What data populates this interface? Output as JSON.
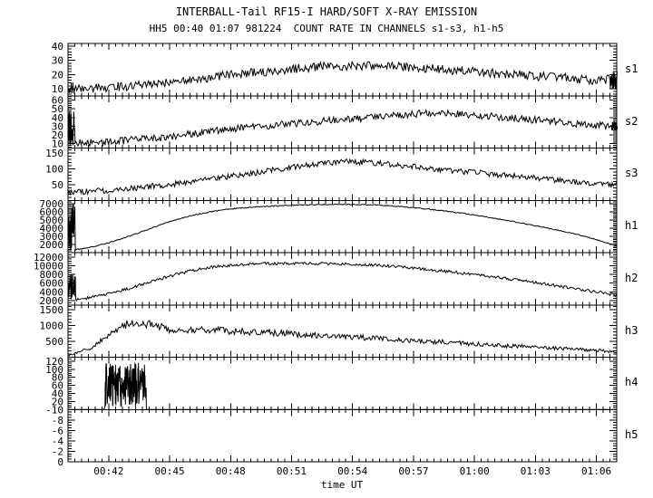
{
  "chart_data": {
    "type": "line",
    "title": "INTERBALL-Tail RF15-I HARD/SOFT X-RAY EMISSION",
    "subtitle": "HH5 00:40 01:07 981224  COUNT RATE IN CHANNELS s1-s3, h1-h5",
    "xlabel": "time UT",
    "date": "981224",
    "time_start": "00:40",
    "time_end": "01:07",
    "x_range_minutes": [
      0,
      27
    ],
    "x_minor_step": 0.33333,
    "x_ticks": [
      {
        "t": 2,
        "label": "00:42"
      },
      {
        "t": 5,
        "label": "00:45"
      },
      {
        "t": 8,
        "label": "00:48"
      },
      {
        "t": 11,
        "label": "00:51"
      },
      {
        "t": 14,
        "label": "00:54"
      },
      {
        "t": 17,
        "label": "00:57"
      },
      {
        "t": 20,
        "label": "01:00"
      },
      {
        "t": 23,
        "label": "01:03"
      },
      {
        "t": 26,
        "label": "01:06"
      }
    ],
    "panels": [
      {
        "name": "s1",
        "ylim": [
          5,
          42
        ],
        "yticks": [
          10,
          20,
          30,
          40
        ],
        "y_minor_step": 2,
        "noise_amp": 3.2,
        "noise_rel": 0,
        "values": [
          10,
          10,
          11,
          12,
          13,
          14,
          16,
          18,
          20,
          21,
          22,
          24,
          25,
          26,
          26,
          26,
          26,
          25,
          24,
          23,
          22,
          21,
          20,
          19,
          18,
          17,
          16,
          17
        ],
        "bursts": [
          {
            "t0": 0,
            "t1": 0.3,
            "lo": 6,
            "hi": 15
          },
          {
            "t0": 26.65,
            "t1": 27,
            "lo": 8,
            "hi": 22
          }
        ]
      },
      {
        "name": "s2",
        "ylim": [
          5,
          65
        ],
        "yticks": [
          10,
          20,
          30,
          40,
          50,
          60
        ],
        "y_minor_step": 2,
        "noise_amp": 4.2,
        "noise_rel": 0,
        "values": [
          10,
          11,
          12,
          14,
          16,
          18,
          21,
          24,
          27,
          29,
          31,
          33,
          35,
          37,
          38,
          40,
          42,
          44,
          45,
          45,
          43,
          41,
          39,
          37,
          35,
          33,
          31,
          30
        ],
        "bursts": [
          {
            "t0": 0,
            "t1": 0.35,
            "lo": 8,
            "hi": 50
          },
          {
            "t0": 26.7,
            "t1": 27,
            "lo": 25,
            "hi": 36
          }
        ]
      },
      {
        "name": "s3",
        "ylim": [
          0,
          165
        ],
        "yticks": [
          50,
          100,
          150
        ],
        "y_minor_step": 10,
        "noise_amp": 9,
        "noise_rel": 0,
        "values": [
          25,
          28,
          32,
          37,
          43,
          50,
          58,
          67,
          76,
          85,
          95,
          104,
          112,
          118,
          122,
          119,
          113,
          107,
          100,
          94,
          88,
          82,
          76,
          70,
          64,
          58,
          53,
          48
        ],
        "bursts": []
      },
      {
        "name": "h1",
        "ylim": [
          1000,
          7400
        ],
        "yticks": [
          2000,
          3000,
          4000,
          5000,
          6000,
          7000
        ],
        "y_minor_step": 200,
        "noise_amp": 60,
        "noise_rel": 0,
        "values": [
          1250,
          1600,
          2200,
          3000,
          3900,
          4800,
          5500,
          6000,
          6350,
          6550,
          6700,
          6800,
          6850,
          6900,
          6900,
          6850,
          6700,
          6500,
          6250,
          5950,
          5600,
          5200,
          4750,
          4300,
          3800,
          3250,
          2600,
          1800
        ],
        "bursts": [
          {
            "t0": 0,
            "t1": 0.35,
            "lo": 1300,
            "hi": 7100
          }
        ]
      },
      {
        "name": "h2",
        "ylim": [
          1000,
          13000
        ],
        "yticks": [
          2000,
          4000,
          6000,
          8000,
          10000,
          12000
        ],
        "y_minor_step": 500,
        "noise_amp": 320,
        "noise_rel": 0,
        "values": [
          2000,
          2600,
          3500,
          4800,
          6200,
          7600,
          8800,
          9600,
          10100,
          10400,
          10500,
          10500,
          10500,
          10450,
          10350,
          10150,
          9850,
          9450,
          9000,
          8500,
          8000,
          7400,
          6800,
          6100,
          5400,
          4700,
          4000,
          3200
        ],
        "bursts": [
          {
            "t0": 0,
            "t1": 0.35,
            "lo": 1700,
            "hi": 8800
          }
        ]
      },
      {
        "name": "h3",
        "ylim": [
          0,
          1650
        ],
        "yticks": [
          500,
          1000,
          1500
        ],
        "y_minor_step": 100,
        "noise_amp": 30,
        "noise_rel": 0.1,
        "values": [
          60,
          250,
          700,
          1080,
          1050,
          880,
          840,
          860,
          830,
          800,
          770,
          730,
          700,
          660,
          630,
          600,
          560,
          530,
          490,
          460,
          420,
          390,
          350,
          320,
          280,
          250,
          210,
          170
        ],
        "bursts": []
      },
      {
        "name": "h4",
        "ylim": [
          0,
          130
        ],
        "yticks": [
          20,
          40,
          60,
          80,
          100,
          120
        ],
        "y_minor_step": 5,
        "noise_amp": 0,
        "noise_rel": 0,
        "values": [
          0,
          0,
          0,
          0,
          0,
          0,
          0,
          0,
          0,
          0,
          0,
          0,
          0,
          0,
          0,
          0,
          0,
          0,
          0,
          0,
          0,
          0,
          0,
          0,
          0,
          0,
          0,
          0
        ],
        "bursts": [
          {
            "t0": 1.8,
            "t1": 3.85,
            "lo": 6,
            "hi": 118
          }
        ]
      },
      {
        "name": "h5",
        "ylim": [
          0,
          -10
        ],
        "yticks": [
          0,
          -2,
          -4,
          -6,
          -8,
          -10
        ],
        "y_minor_step": 0.5,
        "noise_amp": 0,
        "noise_rel": 0,
        "values": [
          0,
          0,
          0,
          0,
          0,
          0,
          0,
          0,
          0,
          0,
          0,
          0,
          0,
          0,
          0,
          0,
          0,
          0,
          0,
          0,
          0,
          0,
          0,
          0,
          0,
          0,
          0,
          0
        ],
        "bursts": []
      }
    ],
    "colors": {
      "foreground": "#000000",
      "background": "#ffffff"
    }
  }
}
